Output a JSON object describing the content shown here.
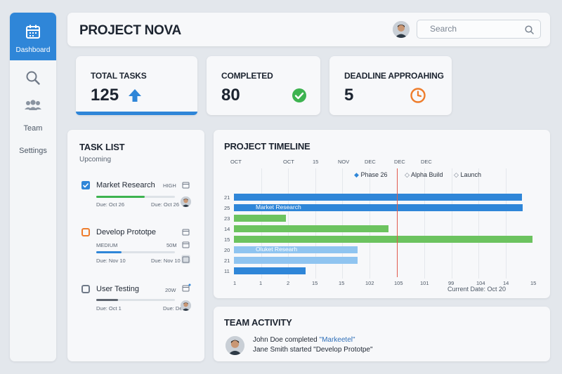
{
  "sidebar": {
    "items": [
      {
        "label": "Dashboard",
        "icon": "calendar-icon",
        "active": true
      },
      {
        "label": "",
        "icon": "search-icon"
      },
      {
        "label": "Team",
        "icon": "team-icon"
      },
      {
        "label": "Settings",
        "icon": "gear-icon"
      }
    ]
  },
  "header": {
    "title": "PROJECT NOVA",
    "search_placeholder": "Search"
  },
  "stats": [
    {
      "label": "TOTAL TASKS",
      "value": "125",
      "icon": "arrow-up-icon",
      "color": "#2f86d8"
    },
    {
      "label": "COMPLETED",
      "value": "80",
      "icon": "check-circle-icon",
      "color": "#3db350"
    },
    {
      "label": "DEADLINE APPROAHING",
      "value": "5",
      "icon": "clock-icon",
      "color": "#ee7d2c"
    }
  ],
  "task_list": {
    "title": "TASK LIST",
    "subtitle": "Upcoming",
    "tasks": [
      {
        "name": "Market Research",
        "tag": "HIGH",
        "due_left": "Due: Oct 26",
        "due_right": "Due: Oct 26",
        "progress": 0.62,
        "color": "#3db350",
        "checked": true
      },
      {
        "name": "Develop Prototpe",
        "tag": "MEDIUM",
        "tag_right": "50M",
        "due_left": "Due: Nov 10",
        "due_right": "Due: Nov 10",
        "progress": 0.32,
        "color": "#2f86d8",
        "checked": false
      },
      {
        "name": "User Testing",
        "tag": "20W",
        "due_left": "Due: Oct 1",
        "due_right": "Due: Det 1",
        "progress": 0.28,
        "color": "#5f6670",
        "checked": false
      }
    ]
  },
  "timeline": {
    "title": "PROJECT TIMELINE",
    "top_axis": [
      "OCT",
      "OCT",
      "15",
      "NOV",
      "DEC",
      "DEC",
      "DEC"
    ],
    "legend": [
      "Phase 26",
      "Alpha Build",
      "Launch"
    ],
    "rows": [
      {
        "label": "21",
        "start": 0.0,
        "end": 0.965,
        "color": "#2f86d8",
        "text": ""
      },
      {
        "label": "25",
        "start": 0.0,
        "end": 0.967,
        "color": "#2f86d8",
        "text": "Market Research"
      },
      {
        "label": "23",
        "start": 0.0,
        "end": 0.175,
        "color": "#6cc35f",
        "text": ""
      },
      {
        "label": "14",
        "start": 0.0,
        "end": 0.517,
        "color": "#6cc35f",
        "text": ""
      },
      {
        "label": "15",
        "start": 0.0,
        "end": 1.0,
        "color": "#6cc35f",
        "text": ""
      },
      {
        "label": "20",
        "start": 0.0,
        "end": 0.415,
        "color": "#8fc4f0",
        "text": "Oluket Researh"
      },
      {
        "label": "21",
        "start": 0.0,
        "end": 0.415,
        "color": "#8fc4f0",
        "text": ""
      },
      {
        "label": "11",
        "start": 0.0,
        "end": 0.24,
        "color": "#2f86d8",
        "text": ""
      }
    ],
    "bottom_axis": [
      "1",
      "1",
      "2",
      "15",
      "15",
      "102",
      "105",
      "101",
      "99",
      "104",
      "14",
      "15"
    ],
    "current_date": "Current Date: Oct 20",
    "current_marker": 0.545
  },
  "activity": {
    "title": "TEAM ACTIVITY",
    "line1_prefix": "John Doe completed ",
    "line1_link": "\"Markeetel\"",
    "line2": "Jane Smith started \"Develop Prototpe\""
  },
  "colors": {
    "accent": "#2f86d8",
    "green": "#3db350",
    "orange": "#ee7d2c",
    "red_marker": "#e05a4d"
  }
}
